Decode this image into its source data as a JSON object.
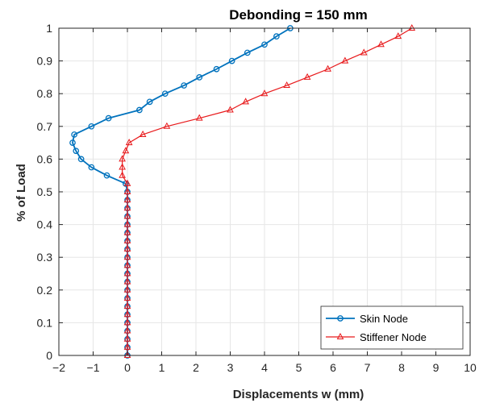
{
  "chart_data": {
    "type": "line",
    "title": "Debonding = 150 mm",
    "xlabel": "Displacements w (mm)",
    "ylabel": "% of Load",
    "xlim": [
      -2,
      10
    ],
    "ylim": [
      0,
      1
    ],
    "xticks": [
      "−2",
      "−1",
      "0",
      "1",
      "2",
      "3",
      "4",
      "5",
      "6",
      "7",
      "8",
      "9",
      "10"
    ],
    "yticks": [
      "0",
      "0.1",
      "0.2",
      "0.3",
      "0.4",
      "0.5",
      "0.6",
      "0.7",
      "0.8",
      "0.9",
      "1"
    ],
    "grid": true,
    "legend_position": "bottom-right",
    "series": [
      {
        "name": "Skin Node",
        "color": "#0072BD",
        "marker": "circle",
        "points": [
          [
            0,
            0
          ],
          [
            0,
            0.025
          ],
          [
            0,
            0.05
          ],
          [
            0,
            0.075
          ],
          [
            0,
            0.1
          ],
          [
            0,
            0.125
          ],
          [
            0,
            0.15
          ],
          [
            0,
            0.175
          ],
          [
            0,
            0.2
          ],
          [
            0,
            0.225
          ],
          [
            0,
            0.25
          ],
          [
            0,
            0.275
          ],
          [
            0,
            0.3
          ],
          [
            0,
            0.325
          ],
          [
            0,
            0.35
          ],
          [
            0,
            0.375
          ],
          [
            0,
            0.4
          ],
          [
            0,
            0.425
          ],
          [
            0,
            0.45
          ],
          [
            0,
            0.475
          ],
          [
            0,
            0.5
          ],
          [
            -0.05,
            0.525
          ],
          [
            -0.6,
            0.55
          ],
          [
            -1.05,
            0.575
          ],
          [
            -1.35,
            0.6
          ],
          [
            -1.5,
            0.625
          ],
          [
            -1.6,
            0.65
          ],
          [
            -1.55,
            0.675
          ],
          [
            -1.05,
            0.7
          ],
          [
            -0.55,
            0.725
          ],
          [
            0.35,
            0.75
          ],
          [
            0.65,
            0.775
          ],
          [
            1.1,
            0.8
          ],
          [
            1.65,
            0.825
          ],
          [
            2.1,
            0.85
          ],
          [
            2.6,
            0.875
          ],
          [
            3.05,
            0.9
          ],
          [
            3.5,
            0.925
          ],
          [
            4.0,
            0.95
          ],
          [
            4.35,
            0.975
          ],
          [
            4.75,
            1.0
          ]
        ]
      },
      {
        "name": "Stiffener Node",
        "color": "#E8191B",
        "marker": "triangle",
        "points": [
          [
            0,
            0
          ],
          [
            0,
            0.025
          ],
          [
            0,
            0.05
          ],
          [
            0,
            0.075
          ],
          [
            0,
            0.1
          ],
          [
            0,
            0.125
          ],
          [
            0,
            0.15
          ],
          [
            0,
            0.175
          ],
          [
            0,
            0.2
          ],
          [
            0,
            0.225
          ],
          [
            0,
            0.25
          ],
          [
            0,
            0.275
          ],
          [
            0,
            0.3
          ],
          [
            0,
            0.325
          ],
          [
            0,
            0.35
          ],
          [
            0,
            0.375
          ],
          [
            0,
            0.4
          ],
          [
            0,
            0.425
          ],
          [
            0,
            0.45
          ],
          [
            0,
            0.475
          ],
          [
            0,
            0.5
          ],
          [
            0,
            0.525
          ],
          [
            -0.15,
            0.55
          ],
          [
            -0.15,
            0.575
          ],
          [
            -0.15,
            0.6
          ],
          [
            -0.05,
            0.625
          ],
          [
            0.05,
            0.65
          ],
          [
            0.45,
            0.675
          ],
          [
            1.15,
            0.7
          ],
          [
            2.1,
            0.725
          ],
          [
            3.0,
            0.75
          ],
          [
            3.45,
            0.775
          ],
          [
            4.0,
            0.8
          ],
          [
            4.65,
            0.825
          ],
          [
            5.25,
            0.85
          ],
          [
            5.85,
            0.875
          ],
          [
            6.35,
            0.9
          ],
          [
            6.9,
            0.925
          ],
          [
            7.4,
            0.95
          ],
          [
            7.9,
            0.975
          ],
          [
            8.3,
            1.0
          ]
        ]
      }
    ]
  }
}
